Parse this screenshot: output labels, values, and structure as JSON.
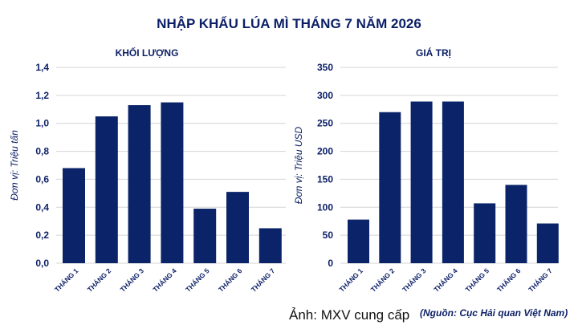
{
  "title": "NHẬP KHẨU LÚA MÌ THÁNG 7 NĂM 2026",
  "chart_data": [
    {
      "type": "bar",
      "title": "KHỐI LƯỢNG",
      "ylabel": "Đơn vị: Triệu tấn",
      "xlabel": "",
      "categories": [
        "THÁNG 1",
        "THÁNG 2",
        "THÁNG 3",
        "THÁNG 4",
        "THÁNG 5",
        "THÁNG 6",
        "THÁNG 7"
      ],
      "values": [
        0.68,
        1.05,
        1.13,
        1.15,
        0.39,
        0.51,
        0.25
      ],
      "ylim": [
        0,
        1.4
      ],
      "yticks": [
        "0,0",
        "0,2",
        "0,4",
        "0,6",
        "0,8",
        "1,0",
        "1,2",
        "1,4"
      ],
      "grid": true,
      "color": "#0b2469"
    },
    {
      "type": "bar",
      "title": "GIÁ TRỊ",
      "ylabel": "Đơn vị: Triệu USD",
      "xlabel": "",
      "categories": [
        "THÁNG 1",
        "THÁNG 2",
        "THÁNG 3",
        "THÁNG 4",
        "THÁNG 5",
        "THÁNG 6",
        "THÁNG 7"
      ],
      "values": [
        78,
        270,
        289,
        289,
        107,
        140,
        71
      ],
      "ylim": [
        0,
        350
      ],
      "yticks": [
        "0",
        "50",
        "100",
        "150",
        "200",
        "250",
        "300",
        "350"
      ],
      "grid": true,
      "color": "#0b2469"
    }
  ],
  "credit": "Ảnh: MXV cung cấp",
  "source": "(Nguồn: Cục Hải quan Việt Nam)"
}
